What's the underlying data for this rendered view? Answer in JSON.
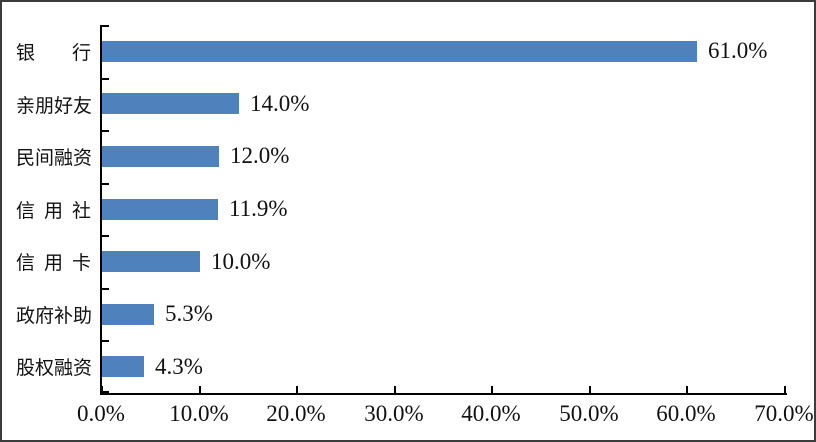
{
  "chart_data": {
    "type": "bar",
    "orientation": "horizontal",
    "title": "",
    "categories": [
      "银行",
      "亲朋好友",
      "民间融资",
      "信用社",
      "信用卡",
      "政府补助",
      "股权融资"
    ],
    "values": [
      61.0,
      14.0,
      12.0,
      11.9,
      10.0,
      5.3,
      4.3
    ],
    "value_labels": [
      "61.0%",
      "14.0%",
      "12.0%",
      "11.9%",
      "10.0%",
      "5.3%",
      "4.3%"
    ],
    "x_axis": {
      "tick_labels": [
        "0.0%",
        "10.0%",
        "20.0%",
        "30.0%",
        "40.0%",
        "50.0%",
        "60.0%",
        "70.0%"
      ],
      "tick_values": [
        0,
        10,
        20,
        30,
        40,
        50,
        60,
        70
      ],
      "min": 0,
      "max": 70
    },
    "xlim": [
      0,
      70
    ],
    "grid": false,
    "legend": false,
    "bar_color": "#4F81BD",
    "category_label_alignment": "distributed"
  }
}
